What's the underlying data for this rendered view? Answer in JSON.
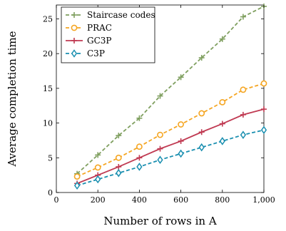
{
  "chart_data": {
    "type": "line",
    "title": "",
    "xlabel": "Number of rows in A",
    "ylabel": "Average completion time",
    "x": [
      100,
      200,
      300,
      400,
      500,
      600,
      700,
      800,
      900,
      1000
    ],
    "xlim": [
      0,
      1000
    ],
    "ylim": [
      0,
      27
    ],
    "xticks": [
      0,
      200,
      400,
      600,
      800,
      1000
    ],
    "xtick_labels": [
      "0",
      "200",
      "400",
      "600",
      "800",
      "1,000"
    ],
    "yticks": [
      0,
      5,
      10,
      15,
      20,
      25
    ],
    "ytick_labels": [
      "0",
      "5",
      "10",
      "15",
      "20",
      "25"
    ],
    "grid": false,
    "legend_position": "top-left",
    "series": [
      {
        "name": "Staircase codes",
        "color": "#7f9f5f",
        "marker": "plus",
        "dash": "dashed",
        "values": [
          2.7,
          5.4,
          8.2,
          10.7,
          13.9,
          16.6,
          19.4,
          22.1,
          25.3,
          26.8
        ]
      },
      {
        "name": "PRAC",
        "color": "#f5a623",
        "marker": "circle",
        "dash": "dashed",
        "values": [
          2.3,
          3.6,
          5.0,
          6.6,
          8.3,
          9.8,
          11.4,
          13.0,
          14.8,
          15.7
        ]
      },
      {
        "name": "GC3P",
        "color": "#c03a52",
        "marker": "plus",
        "dash": "solid",
        "values": [
          1.3,
          2.5,
          3.7,
          5.0,
          6.3,
          7.4,
          8.7,
          9.9,
          11.2,
          12.0
        ]
      },
      {
        "name": "C3P",
        "color": "#1a8fb0",
        "marker": "diamond",
        "dash": "dashed",
        "values": [
          1.0,
          1.9,
          2.8,
          3.7,
          4.7,
          5.6,
          6.5,
          7.4,
          8.3,
          9.0
        ]
      }
    ]
  }
}
